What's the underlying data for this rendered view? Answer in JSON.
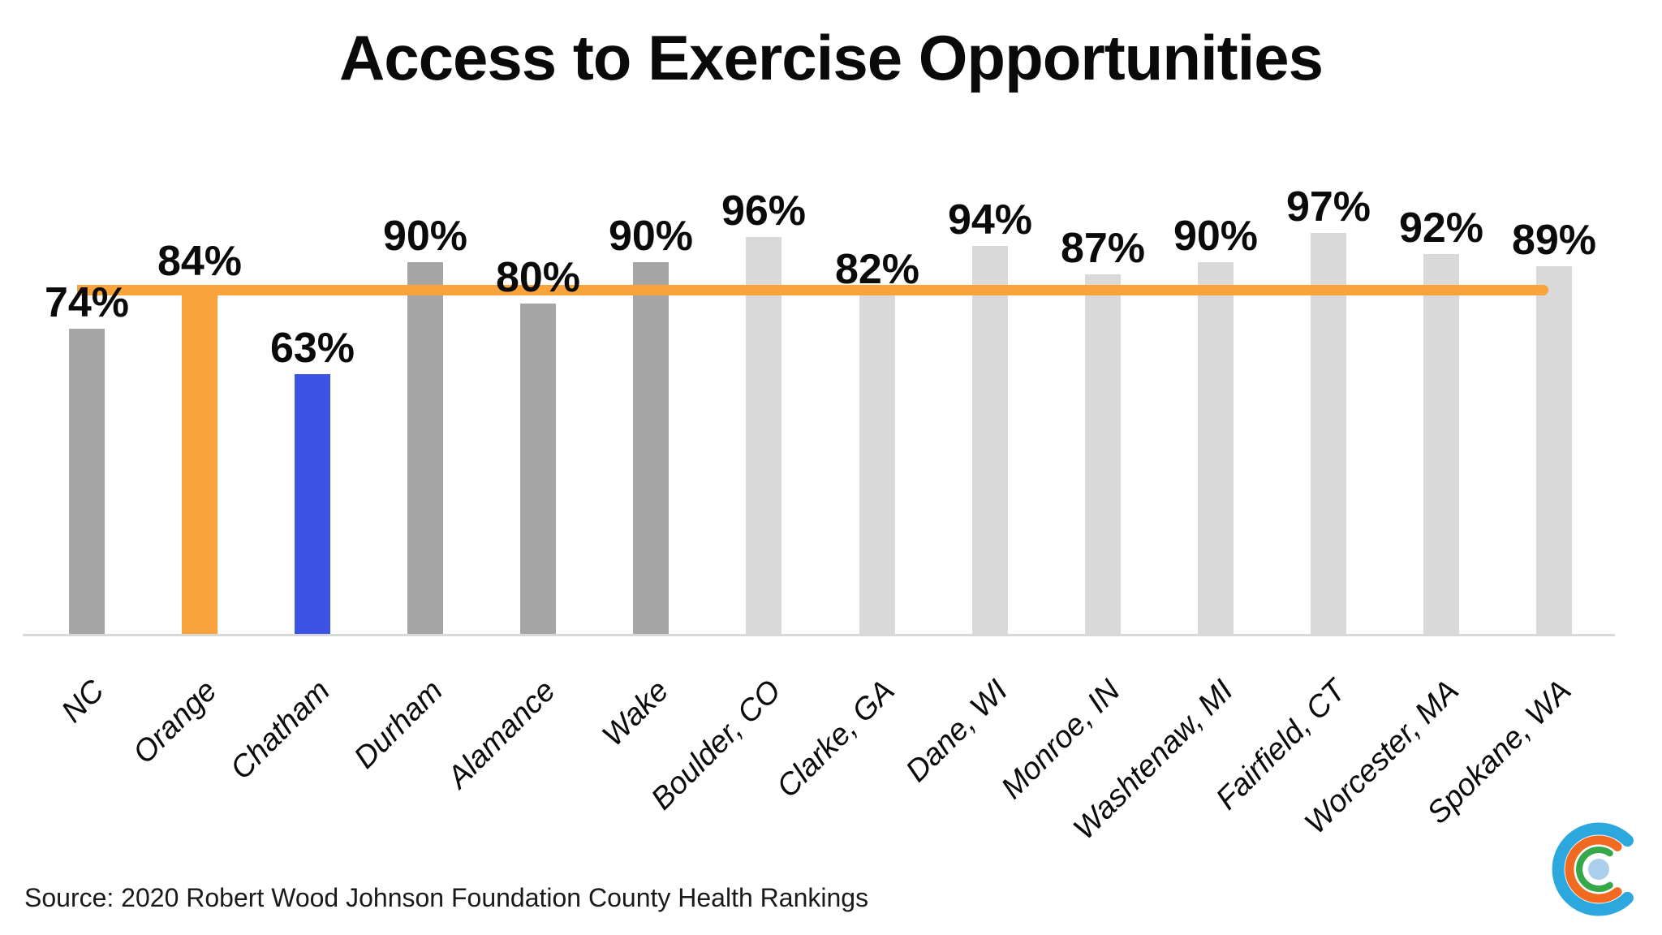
{
  "title": "Access to Exercise Opportunities",
  "source_note": "Source: 2020 Robert Wood Johnson Foundation County Health Rankings",
  "colors": {
    "nc_county_gray": "#a6a6a6",
    "peer_county_light_gray": "#d9d9d9",
    "orange_highlight": "#f8a33b",
    "chatham_blue": "#3c53e6",
    "axis_line_gray": "#d9d9d9",
    "text_black": "#0a0a0a"
  },
  "reference_line": {
    "value": 84,
    "color": "#f8a33b",
    "meaning": "Orange County value extended across chart"
  },
  "chart_data": {
    "type": "bar",
    "title": "Access to Exercise Opportunities",
    "categories": [
      "NC",
      "Orange",
      "Chatham",
      "Durham",
      "Alamance",
      "Wake",
      "Boulder, CO",
      "Clarke, GA",
      "Dane, WI",
      "Monroe, IN",
      "Washtenaw, MI",
      "Fairfield, CT",
      "Worcester, MA",
      "Spokane, WA"
    ],
    "values": [
      74,
      84,
      63,
      90,
      80,
      90,
      96,
      82,
      94,
      87,
      90,
      97,
      92,
      89
    ],
    "data_labels": [
      "74%",
      "84%",
      "63%",
      "90%",
      "80%",
      "90%",
      "96%",
      "82%",
      "94%",
      "87%",
      "90%",
      "97%",
      "92%",
      "89%"
    ],
    "bar_colors": [
      "#a6a6a6",
      "#f8a33b",
      "#3c53e6",
      "#a6a6a6",
      "#a6a6a6",
      "#a6a6a6",
      "#d9d9d9",
      "#d9d9d9",
      "#d9d9d9",
      "#d9d9d9",
      "#d9d9d9",
      "#d9d9d9",
      "#d9d9d9",
      "#d9d9d9"
    ],
    "xlabel": "",
    "ylabel": "",
    "ylim": [
      0,
      100
    ],
    "grid": false,
    "legend": "none",
    "annotations": "Horizontal orange reference line at 84% (Orange County); x-axis labels italic rotated 45 degrees"
  },
  "logo": {
    "name": "concentric-c-logo",
    "arc_colors": {
      "outer": "#2ca8df",
      "middle": "#f16a22",
      "inner": "#35a849",
      "center_dot": "#a9cfec"
    }
  }
}
